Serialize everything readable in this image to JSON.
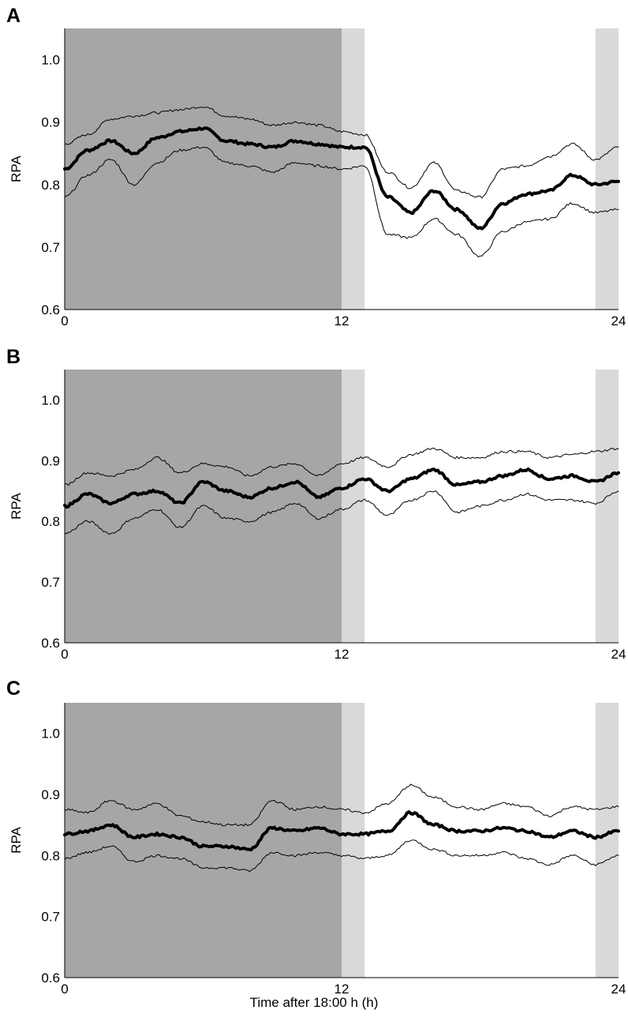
{
  "chart_data": [
    {
      "panel": "A",
      "type": "line",
      "ylabel": "RPA",
      "xlabel": "",
      "xlim": [
        0,
        24
      ],
      "ylim": [
        0.6,
        1.05
      ],
      "xticks": [
        "0",
        "12",
        "24"
      ],
      "yticks": [
        "0.6",
        "0.7",
        "0.8",
        "0.9",
        "1.0"
      ],
      "shaded_regions": [
        {
          "from": 0,
          "to": 12,
          "color": "#a6a6a6"
        },
        {
          "from": 12,
          "to": 13,
          "color": "#d9d9d9"
        },
        {
          "from": 23,
          "to": 24,
          "color": "#d9d9d9"
        }
      ],
      "x": [
        0,
        1,
        2,
        3,
        4,
        5,
        6,
        7,
        8,
        9,
        10,
        11,
        12,
        13,
        14,
        15,
        16,
        17,
        18,
        19,
        20,
        21,
        22,
        23,
        24
      ],
      "series": [
        {
          "role": "mean",
          "values": [
            0.825,
            0.855,
            0.87,
            0.85,
            0.875,
            0.885,
            0.89,
            0.87,
            0.865,
            0.86,
            0.87,
            0.865,
            0.86,
            0.86,
            0.78,
            0.755,
            0.79,
            0.76,
            0.73,
            0.77,
            0.785,
            0.79,
            0.815,
            0.8,
            0.805
          ]
        },
        {
          "role": "upper",
          "values": [
            0.865,
            0.88,
            0.905,
            0.91,
            0.915,
            0.92,
            0.925,
            0.91,
            0.905,
            0.895,
            0.9,
            0.895,
            0.885,
            0.88,
            0.82,
            0.795,
            0.835,
            0.79,
            0.78,
            0.825,
            0.83,
            0.845,
            0.865,
            0.84,
            0.86
          ]
        },
        {
          "role": "lower",
          "values": [
            0.78,
            0.815,
            0.84,
            0.8,
            0.835,
            0.855,
            0.86,
            0.835,
            0.83,
            0.82,
            0.835,
            0.83,
            0.825,
            0.83,
            0.72,
            0.715,
            0.745,
            0.72,
            0.685,
            0.725,
            0.74,
            0.745,
            0.77,
            0.755,
            0.76
          ]
        }
      ]
    },
    {
      "panel": "B",
      "type": "line",
      "ylabel": "RPA",
      "xlabel": "",
      "xlim": [
        0,
        24
      ],
      "ylim": [
        0.6,
        1.05
      ],
      "xticks": [
        "0",
        "12",
        "24"
      ],
      "yticks": [
        "0.6",
        "0.7",
        "0.8",
        "0.9",
        "1.0"
      ],
      "shaded_regions": [
        {
          "from": 0,
          "to": 12,
          "color": "#a6a6a6"
        },
        {
          "from": 12,
          "to": 13,
          "color": "#d9d9d9"
        },
        {
          "from": 23,
          "to": 24,
          "color": "#d9d9d9"
        }
      ],
      "x": [
        0,
        1,
        2,
        3,
        4,
        5,
        6,
        7,
        8,
        9,
        10,
        11,
        12,
        13,
        14,
        15,
        16,
        17,
        18,
        19,
        20,
        21,
        22,
        23,
        24
      ],
      "series": [
        {
          "role": "mean",
          "values": [
            0.825,
            0.845,
            0.83,
            0.845,
            0.85,
            0.83,
            0.865,
            0.85,
            0.84,
            0.855,
            0.865,
            0.84,
            0.855,
            0.87,
            0.85,
            0.87,
            0.885,
            0.86,
            0.865,
            0.875,
            0.885,
            0.87,
            0.875,
            0.865,
            0.88
          ]
        },
        {
          "role": "upper",
          "values": [
            0.86,
            0.88,
            0.875,
            0.885,
            0.905,
            0.88,
            0.895,
            0.89,
            0.875,
            0.89,
            0.895,
            0.875,
            0.895,
            0.905,
            0.89,
            0.91,
            0.92,
            0.905,
            0.905,
            0.915,
            0.915,
            0.905,
            0.91,
            0.915,
            0.92
          ]
        },
        {
          "role": "lower",
          "values": [
            0.78,
            0.8,
            0.78,
            0.805,
            0.82,
            0.79,
            0.825,
            0.805,
            0.8,
            0.815,
            0.83,
            0.805,
            0.82,
            0.835,
            0.81,
            0.835,
            0.85,
            0.815,
            0.825,
            0.835,
            0.845,
            0.835,
            0.835,
            0.83,
            0.85
          ]
        }
      ]
    },
    {
      "panel": "C",
      "type": "line",
      "ylabel": "RPA",
      "xlabel": "Time after 18:00 h (h)",
      "xlim": [
        0,
        24
      ],
      "ylim": [
        0.6,
        1.05
      ],
      "xticks": [
        "0",
        "12",
        "24"
      ],
      "yticks": [
        "0.6",
        "0.7",
        "0.8",
        "0.9",
        "1.0"
      ],
      "shaded_regions": [
        {
          "from": 0,
          "to": 12,
          "color": "#a6a6a6"
        },
        {
          "from": 12,
          "to": 13,
          "color": "#d9d9d9"
        },
        {
          "from": 23,
          "to": 24,
          "color": "#d9d9d9"
        }
      ],
      "x": [
        0,
        1,
        2,
        3,
        4,
        5,
        6,
        7,
        8,
        9,
        10,
        11,
        12,
        13,
        14,
        15,
        16,
        17,
        18,
        19,
        20,
        21,
        22,
        23,
        24
      ],
      "series": [
        {
          "role": "mean",
          "values": [
            0.835,
            0.84,
            0.85,
            0.83,
            0.835,
            0.83,
            0.815,
            0.815,
            0.81,
            0.845,
            0.84,
            0.845,
            0.835,
            0.835,
            0.84,
            0.87,
            0.85,
            0.84,
            0.84,
            0.845,
            0.84,
            0.83,
            0.84,
            0.83,
            0.84
          ]
        },
        {
          "role": "upper",
          "values": [
            0.875,
            0.87,
            0.89,
            0.875,
            0.885,
            0.865,
            0.855,
            0.85,
            0.85,
            0.89,
            0.875,
            0.88,
            0.875,
            0.87,
            0.885,
            0.915,
            0.895,
            0.88,
            0.875,
            0.885,
            0.88,
            0.865,
            0.88,
            0.875,
            0.88
          ]
        },
        {
          "role": "lower",
          "values": [
            0.795,
            0.805,
            0.815,
            0.79,
            0.8,
            0.795,
            0.78,
            0.78,
            0.775,
            0.805,
            0.8,
            0.805,
            0.8,
            0.795,
            0.8,
            0.825,
            0.81,
            0.8,
            0.8,
            0.805,
            0.795,
            0.785,
            0.8,
            0.785,
            0.8
          ]
        }
      ]
    }
  ]
}
